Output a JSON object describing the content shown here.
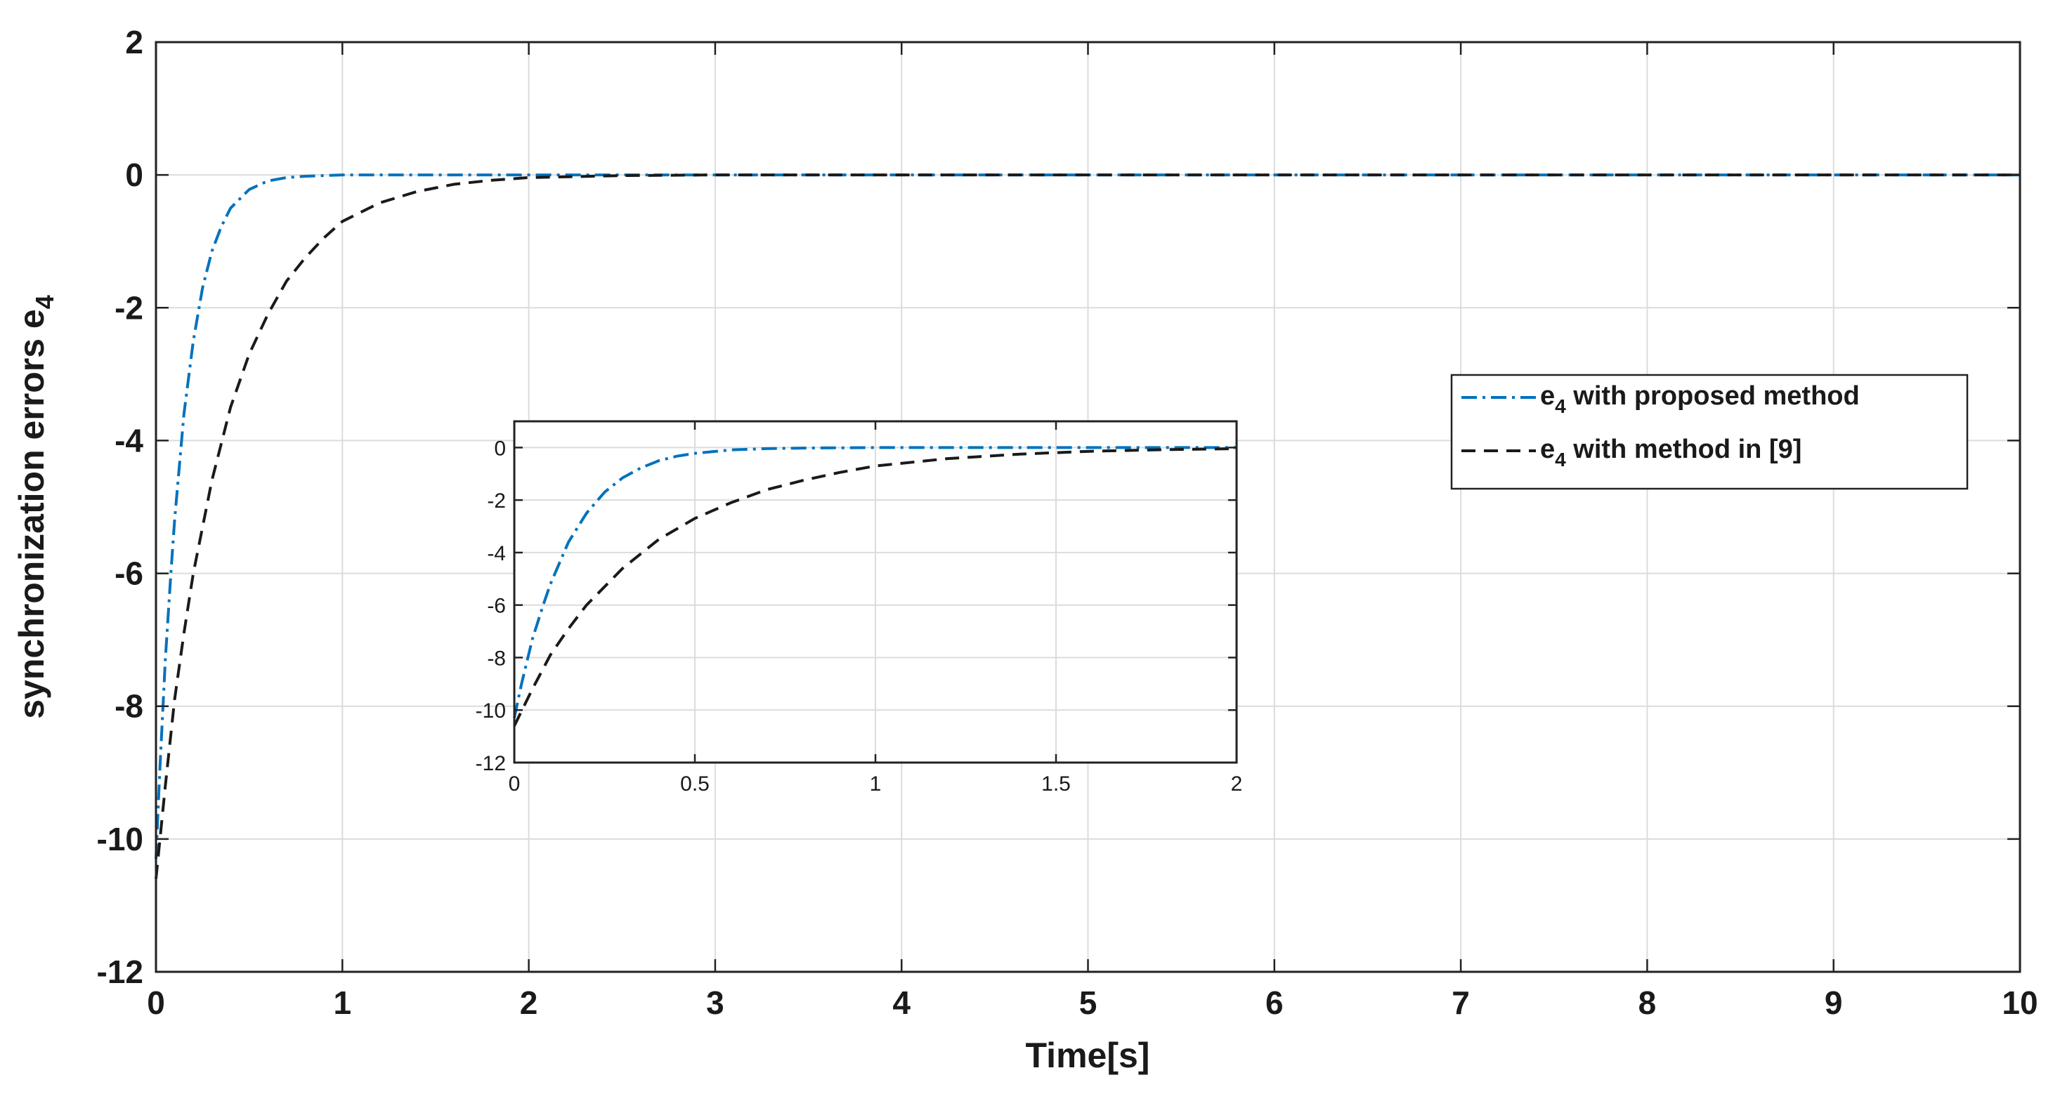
{
  "chart_data": [
    {
      "id": "main",
      "type": "line",
      "title": "",
      "xlabel": "Time[s]",
      "ylabel_main": "synchronization errors  e",
      "ylabel_sub": "4",
      "xlim": [
        0,
        10
      ],
      "ylim": [
        -12,
        2
      ],
      "xticks": [
        0,
        1,
        2,
        3,
        4,
        5,
        6,
        7,
        8,
        9,
        10
      ],
      "yticks": [
        2,
        0,
        -2,
        -4,
        -6,
        -8,
        -10,
        -12
      ],
      "grid": true,
      "legend_placement": "right-middle",
      "series": [
        {
          "name": "e4 with proposed method",
          "legend_main": "e",
          "legend_sub": "4",
          "legend_rest": " with proposed method",
          "color": "#0072BD",
          "dash": "dashdot",
          "x": [
            0,
            0.02,
            0.05,
            0.08,
            0.1,
            0.15,
            0.2,
            0.25,
            0.3,
            0.35,
            0.4,
            0.5,
            0.6,
            0.7,
            0.8,
            1.0,
            1.5,
            2,
            3,
            4,
            5,
            6,
            7,
            8,
            9,
            10
          ],
          "y": [
            -10.3,
            -9.0,
            -7.3,
            -6.0,
            -5.2,
            -3.6,
            -2.5,
            -1.7,
            -1.15,
            -0.78,
            -0.5,
            -0.22,
            -0.09,
            -0.04,
            -0.02,
            0,
            0,
            0,
            0,
            0,
            0,
            0,
            0,
            0,
            0,
            0
          ]
        },
        {
          "name": "e4 with method in [9]",
          "legend_main": "e",
          "legend_sub": "4",
          "legend_rest": " with method in [9]",
          "color": "#1a1a1a",
          "dash": "dash",
          "x": [
            0,
            0.05,
            0.1,
            0.15,
            0.2,
            0.3,
            0.4,
            0.5,
            0.6,
            0.7,
            0.8,
            0.9,
            1.0,
            1.2,
            1.4,
            1.6,
            1.8,
            2.0,
            2.5,
            3,
            4,
            5,
            6,
            7,
            8,
            9,
            10
          ],
          "y": [
            -10.6,
            -9.2,
            -7.9,
            -6.9,
            -6.0,
            -4.6,
            -3.5,
            -2.7,
            -2.1,
            -1.6,
            -1.25,
            -0.95,
            -0.7,
            -0.42,
            -0.25,
            -0.14,
            -0.08,
            -0.04,
            -0.01,
            0,
            0,
            0,
            0,
            0,
            0,
            0,
            0
          ]
        }
      ]
    },
    {
      "id": "inset",
      "type": "line",
      "title": "",
      "xlim": [
        0,
        2
      ],
      "ylim": [
        -12,
        1
      ],
      "xticks": [
        0,
        0.5,
        1,
        1.5,
        2
      ],
      "yticks": [
        0,
        -2,
        -4,
        -6,
        -8,
        -10,
        -12
      ],
      "grid": true,
      "series": [
        {
          "color": "#0072BD",
          "dash": "dashdot",
          "x": [
            0,
            0.02,
            0.05,
            0.08,
            0.1,
            0.15,
            0.2,
            0.25,
            0.3,
            0.35,
            0.4,
            0.45,
            0.5,
            0.6,
            0.7,
            0.8,
            1.0,
            1.5,
            2.0
          ],
          "y": [
            -10.3,
            -9.0,
            -7.3,
            -6.0,
            -5.2,
            -3.6,
            -2.5,
            -1.7,
            -1.15,
            -0.78,
            -0.5,
            -0.33,
            -0.22,
            -0.09,
            -0.04,
            -0.02,
            0,
            0,
            0
          ]
        },
        {
          "color": "#1a1a1a",
          "dash": "dash",
          "x": [
            0,
            0.05,
            0.1,
            0.15,
            0.2,
            0.3,
            0.4,
            0.5,
            0.6,
            0.7,
            0.8,
            0.9,
            1.0,
            1.2,
            1.4,
            1.6,
            1.8,
            2.0
          ],
          "y": [
            -10.6,
            -9.2,
            -7.9,
            -6.9,
            -6.0,
            -4.6,
            -3.5,
            -2.7,
            -2.1,
            -1.6,
            -1.25,
            -0.95,
            -0.7,
            -0.42,
            -0.25,
            -0.14,
            -0.08,
            -0.04
          ]
        }
      ]
    }
  ]
}
